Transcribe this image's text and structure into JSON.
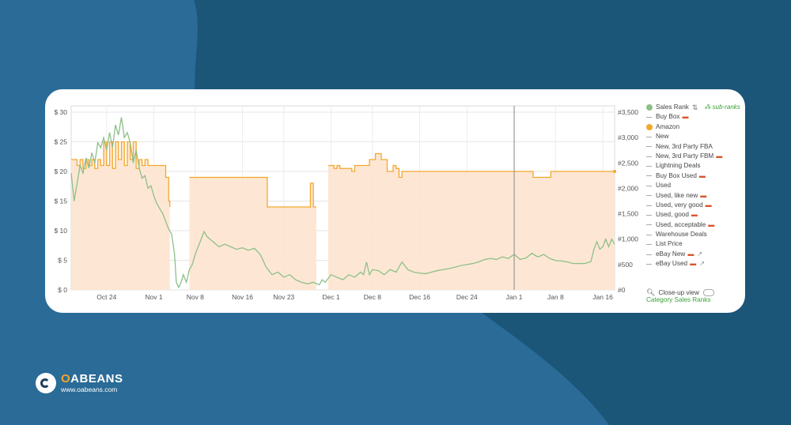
{
  "brand": {
    "name_o": "O",
    "name_rest": "ABEANS",
    "url": "www.oabeans.com"
  },
  "colors": {
    "amazon": "#f4a72c",
    "amazon_fill": "#fde3cc",
    "sales_rank": "#8ebf8a",
    "background": "#1f5a82"
  },
  "legend": {
    "sales_rank": "Sales Rank",
    "sub_ranks": "sub-ranks",
    "items": [
      {
        "label": "Buy Box",
        "truck": true
      },
      {
        "label": "Amazon",
        "dot": "amazon"
      },
      {
        "label": "New"
      },
      {
        "label": "New, 3rd Party FBA"
      },
      {
        "label": "New, 3rd Party FBM",
        "truck": true
      },
      {
        "label": "Lightning Deals"
      },
      {
        "label": "Buy Box Used",
        "truck": true
      },
      {
        "label": "Used"
      },
      {
        "label": "Used, like new",
        "truck": true
      },
      {
        "label": "Used, very good",
        "truck": true
      },
      {
        "label": "Used, good",
        "truck": true
      },
      {
        "label": "Used, acceptable",
        "truck": true
      },
      {
        "label": "Warehouse Deals"
      },
      {
        "label": "List Price"
      },
      {
        "label": "eBay New",
        "truck": true,
        "ext": true
      },
      {
        "label": "eBay Used",
        "truck": true,
        "ext": true
      }
    ],
    "close_up": "Close-up view",
    "category_ranks": "Category Sales Ranks"
  },
  "chart_data": {
    "type": "line",
    "x_ticks": [
      "Oct 24",
      "Nov 1",
      "Nov 8",
      "Nov 16",
      "Nov 23",
      "Dec 1",
      "Dec 8",
      "Dec 16",
      "Dec 24",
      "Jan 1",
      "Jan 8",
      "Jan 16"
    ],
    "x_tick_days": [
      6,
      14,
      21,
      29,
      36,
      44,
      51,
      59,
      67,
      75,
      82,
      90
    ],
    "x_range_days": [
      0,
      92
    ],
    "y_left": {
      "ticks": [
        "$ 0",
        "$ 5",
        "$ 10",
        "$ 15",
        "$ 20",
        "$ 25",
        "$ 30"
      ],
      "range": [
        0,
        30
      ]
    },
    "y_right": {
      "ticks": [
        "#0",
        "#500",
        "#1,000",
        "#1,500",
        "#2,000",
        "#2,500",
        "#3,000",
        "#3,500"
      ],
      "range": [
        0,
        3500
      ]
    },
    "series": [
      {
        "name": "Amazon",
        "axis": "left",
        "points": [
          [
            0,
            22
          ],
          [
            1,
            21
          ],
          [
            1.5,
            22
          ],
          [
            2,
            20.5
          ],
          [
            2.5,
            22
          ],
          [
            3,
            21
          ],
          [
            3.5,
            22
          ],
          [
            4,
            20.5
          ],
          [
            4.5,
            22
          ],
          [
            5,
            21
          ],
          [
            5.5,
            25
          ],
          [
            6,
            21
          ],
          [
            6.5,
            25
          ],
          [
            7,
            20.5
          ],
          [
            7.5,
            25
          ],
          [
            8,
            22
          ],
          [
            8.5,
            25
          ],
          [
            9,
            21
          ],
          [
            9.5,
            25
          ],
          [
            10,
            22
          ],
          [
            10.5,
            25
          ],
          [
            11,
            20.5
          ],
          [
            11.5,
            22
          ],
          [
            12,
            21
          ],
          [
            12.5,
            22
          ],
          [
            13,
            21
          ],
          [
            16,
            19
          ],
          [
            16.5,
            15
          ],
          [
            16.7,
            14
          ],
          [
            null,
            null
          ],
          [
            20,
            19
          ],
          [
            33,
            19
          ],
          [
            33.2,
            14
          ],
          [
            40,
            14
          ],
          [
            40.5,
            18
          ],
          [
            41,
            14
          ],
          [
            41.5,
            14
          ],
          [
            null,
            null
          ],
          [
            43.5,
            21
          ],
          [
            44.5,
            20.5
          ],
          [
            45,
            21
          ],
          [
            45.5,
            20.5
          ],
          [
            47,
            20.5
          ],
          [
            47.5,
            20
          ],
          [
            48,
            21
          ],
          [
            50,
            21
          ],
          [
            50.5,
            22
          ],
          [
            51.5,
            23
          ],
          [
            52.5,
            22
          ],
          [
            53.5,
            20
          ],
          [
            54.5,
            21
          ],
          [
            55,
            20.5
          ],
          [
            55.5,
            19
          ],
          [
            56,
            20
          ],
          [
            56.5,
            20
          ],
          [
            75,
            20
          ],
          [
            78,
            20
          ],
          [
            78.2,
            19
          ],
          [
            81,
            19
          ],
          [
            81.2,
            20
          ],
          [
            92,
            20
          ]
        ]
      },
      {
        "name": "Sales Rank",
        "axis": "right",
        "points": [
          [
            0,
            2300
          ],
          [
            0.5,
            1750
          ],
          [
            1,
            2100
          ],
          [
            1.5,
            2450
          ],
          [
            2,
            2300
          ],
          [
            2.5,
            2600
          ],
          [
            3,
            2400
          ],
          [
            3.5,
            2700
          ],
          [
            4,
            2500
          ],
          [
            4.5,
            2900
          ],
          [
            5,
            2800
          ],
          [
            5.5,
            3000
          ],
          [
            6,
            2750
          ],
          [
            6.5,
            3100
          ],
          [
            7,
            2800
          ],
          [
            7.5,
            3250
          ],
          [
            8,
            3050
          ],
          [
            8.5,
            3400
          ],
          [
            9,
            3000
          ],
          [
            9.5,
            3100
          ],
          [
            10,
            2900
          ],
          [
            10.5,
            2500
          ],
          [
            11,
            2750
          ],
          [
            11.5,
            2400
          ],
          [
            12,
            2200
          ],
          [
            12.5,
            2250
          ],
          [
            13,
            2000
          ],
          [
            13.5,
            2050
          ],
          [
            14,
            1850
          ],
          [
            14.5,
            1700
          ],
          [
            15,
            1600
          ],
          [
            15.5,
            1500
          ],
          [
            16,
            1350
          ],
          [
            16.5,
            1200
          ],
          [
            17,
            1100
          ],
          [
            17.5,
            700
          ],
          [
            17.8,
            150
          ],
          [
            18.2,
            50
          ],
          [
            18.6,
            150
          ],
          [
            19,
            300
          ],
          [
            19.5,
            150
          ],
          [
            20,
            400
          ],
          [
            20.5,
            500
          ],
          [
            21,
            700
          ],
          [
            21.5,
            850
          ],
          [
            22,
            1000
          ],
          [
            22.5,
            1150
          ],
          [
            23,
            1050
          ],
          [
            23.5,
            1000
          ],
          [
            24,
            950
          ],
          [
            25,
            850
          ],
          [
            26,
            900
          ],
          [
            27,
            850
          ],
          [
            28,
            800
          ],
          [
            29,
            830
          ],
          [
            30,
            780
          ],
          [
            31,
            820
          ],
          [
            32,
            700
          ],
          [
            33,
            450
          ],
          [
            34,
            300
          ],
          [
            35,
            350
          ],
          [
            36,
            250
          ],
          [
            37,
            300
          ],
          [
            38,
            200
          ],
          [
            39,
            150
          ],
          [
            40,
            120
          ],
          [
            41,
            150
          ],
          [
            42,
            100
          ],
          [
            42.5,
            200
          ],
          [
            43,
            150
          ],
          [
            44,
            300
          ],
          [
            45,
            250
          ],
          [
            46,
            200
          ],
          [
            47,
            300
          ],
          [
            48,
            250
          ],
          [
            49,
            350
          ],
          [
            49.5,
            300
          ],
          [
            50,
            550
          ],
          [
            50.5,
            300
          ],
          [
            51,
            400
          ],
          [
            52,
            380
          ],
          [
            53,
            300
          ],
          [
            54,
            400
          ],
          [
            55,
            350
          ],
          [
            55.5,
            450
          ],
          [
            56,
            550
          ],
          [
            57,
            400
          ],
          [
            58,
            350
          ],
          [
            59,
            330
          ],
          [
            60,
            320
          ],
          [
            61,
            350
          ],
          [
            62,
            380
          ],
          [
            63,
            400
          ],
          [
            64,
            420
          ],
          [
            65,
            450
          ],
          [
            66,
            480
          ],
          [
            67,
            500
          ],
          [
            68,
            520
          ],
          [
            69,
            550
          ],
          [
            70,
            600
          ],
          [
            71,
            620
          ],
          [
            72,
            600
          ],
          [
            73,
            650
          ],
          [
            74,
            620
          ],
          [
            75,
            700
          ],
          [
            76,
            600
          ],
          [
            77,
            630
          ],
          [
            78,
            720
          ],
          [
            79,
            650
          ],
          [
            80,
            700
          ],
          [
            81,
            620
          ],
          [
            82,
            580
          ],
          [
            83,
            570
          ],
          [
            84,
            550
          ],
          [
            85,
            520
          ],
          [
            86,
            520
          ],
          [
            87,
            520
          ],
          [
            88,
            560
          ],
          [
            88.5,
            800
          ],
          [
            89,
            950
          ],
          [
            89.5,
            800
          ],
          [
            90,
            850
          ],
          [
            90.5,
            1000
          ],
          [
            91,
            850
          ],
          [
            91.5,
            1000
          ],
          [
            92,
            900
          ]
        ]
      }
    ],
    "grid": true,
    "legend": "right",
    "marker_day": 75
  }
}
